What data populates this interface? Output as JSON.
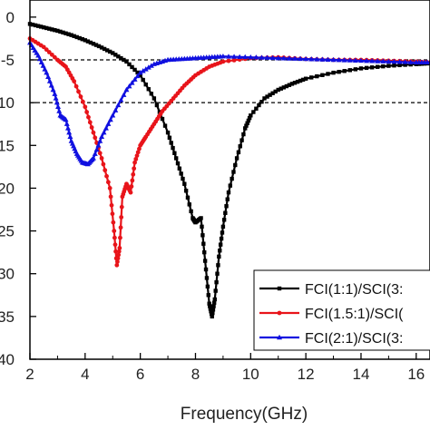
{
  "chart_data": {
    "type": "line",
    "title": "",
    "xlabel": "Frequency(GHz)",
    "ylabel": "",
    "xlim": [
      2,
      16.5
    ],
    "ylim": [
      -40,
      2
    ],
    "x_ticks": [
      2,
      4,
      6,
      8,
      10,
      12,
      14,
      16
    ],
    "y_ticks": [
      0,
      -5,
      -10,
      -15,
      -20,
      -25,
      -30,
      -35,
      -40
    ],
    "y_tick_labels": [
      "0",
      "-5",
      "-10",
      "-15",
      "-20",
      "-25",
      "-30",
      "-35",
      "-40"
    ],
    "reference_lines": [
      -5,
      -10
    ],
    "legend_position": "bottom-right",
    "series": [
      {
        "name": "FCI(1:1)/SCI(3:",
        "color": "#000000",
        "marker": "square",
        "x": [
          2,
          2.5,
          3,
          3.5,
          4,
          4.5,
          5,
          5.5,
          6,
          6.5,
          7,
          7.3,
          7.6,
          7.9,
          8.0,
          8.2,
          8.35,
          8.5,
          8.6,
          8.7,
          8.85,
          9.0,
          9.2,
          9.5,
          9.8,
          10,
          10.5,
          11,
          11.5,
          12,
          13,
          14,
          15,
          16,
          16.5
        ],
        "y": [
          -0.8,
          -1.2,
          -1.6,
          -2.1,
          -2.7,
          -3.4,
          -4.2,
          -5.2,
          -6.8,
          -9.5,
          -13.5,
          -16.5,
          -19.5,
          -23.5,
          -24.0,
          -23.5,
          -28.5,
          -33.5,
          -35.0,
          -33.0,
          -28.0,
          -24.5,
          -20.5,
          -16.5,
          -13.0,
          -11.5,
          -9.5,
          -8.5,
          -7.8,
          -7.2,
          -6.5,
          -6.0,
          -5.7,
          -5.5,
          -5.4
        ]
      },
      {
        "name": "FCI(1.5:1)/SCI(",
        "color": "#e8141a",
        "marker": "circle",
        "x": [
          2,
          2.5,
          3,
          3.3,
          3.6,
          4,
          4.3,
          4.6,
          4.9,
          5.05,
          5.15,
          5.25,
          5.35,
          5.5,
          5.65,
          5.8,
          6.0,
          6.2,
          6.5,
          6.8,
          7.2,
          7.6,
          8,
          8.5,
          9,
          10,
          11,
          12,
          13,
          14,
          15,
          16,
          16.5
        ],
        "y": [
          -2.5,
          -3.5,
          -5.0,
          -5.8,
          -7.5,
          -10.5,
          -13.5,
          -16.5,
          -20.0,
          -25.0,
          -29.0,
          -27.0,
          -21.0,
          -19.5,
          -20.5,
          -17.0,
          -15.0,
          -14.0,
          -12.5,
          -11.0,
          -9.5,
          -8.0,
          -6.8,
          -5.8,
          -5.2,
          -4.8,
          -4.7,
          -4.9,
          -5.0,
          -5.0,
          -5.1,
          -5.2,
          -5.3
        ]
      },
      {
        "name": "FCI(2:1)/SCI(3:",
        "color": "#1010e0",
        "marker": "triangle",
        "x": [
          2,
          2.3,
          2.6,
          2.9,
          3.1,
          3.3,
          3.5,
          3.7,
          3.9,
          4.1,
          4.3,
          4.6,
          5,
          5.5,
          6,
          6.5,
          7,
          7.5,
          8,
          8.5,
          9,
          10,
          11,
          12,
          13,
          14,
          15,
          16,
          16.5
        ],
        "y": [
          -3.0,
          -4.5,
          -6.5,
          -9.0,
          -11.5,
          -12.0,
          -14.5,
          -16.0,
          -17.0,
          -17.2,
          -16.5,
          -14.0,
          -11.5,
          -8.5,
          -6.5,
          -5.5,
          -5.0,
          -4.9,
          -4.8,
          -4.7,
          -4.6,
          -4.7,
          -4.8,
          -4.9,
          -5.0,
          -5.1,
          -5.2,
          -5.3,
          -5.3
        ]
      }
    ]
  }
}
